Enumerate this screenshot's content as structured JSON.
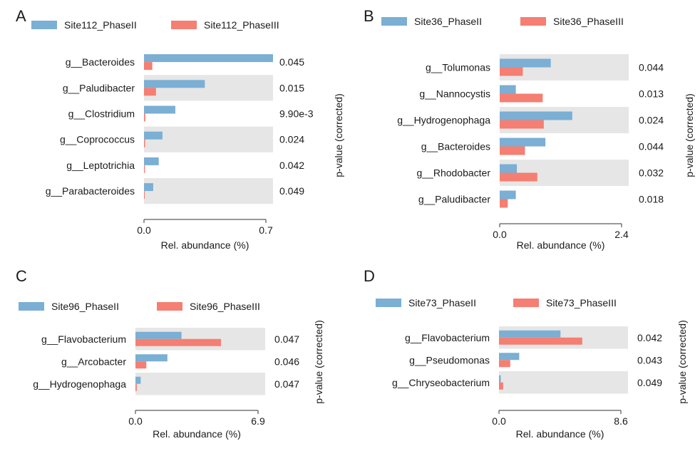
{
  "colors": {
    "phase2": "#7bafd4",
    "phase3": "#f47f72",
    "band": "#e6e6e6",
    "axis": "#333333"
  },
  "chart_data": [
    {
      "type": "bar",
      "panel_label": "A",
      "legend": [
        "Site112_PhaseII",
        "Site112_PhaseIII"
      ],
      "categories": [
        "g__Bacteroides",
        "g__Paludibacter",
        "g__Clostridium",
        "g__Coprococcus",
        "g__Leptotrichia",
        "g__Parabacteroides"
      ],
      "series": [
        {
          "name": "Site112_PhaseII",
          "values": [
            0.7,
            0.33,
            0.17,
            0.1,
            0.08,
            0.05
          ]
        },
        {
          "name": "Site112_PhaseIII",
          "values": [
            0.045,
            0.065,
            0.007,
            0.006,
            0.005,
            0.004
          ]
        }
      ],
      "pvalues": [
        "0.045",
        "0.015",
        "9.90e-3",
        "0.024",
        "0.042",
        "0.049"
      ],
      "xlabel": "Rel. abundance (%)",
      "ylabel_right": "p-value (corrected)",
      "xticks": [
        "0.0",
        "0.7"
      ],
      "xlim": [
        0,
        0.7
      ],
      "legend_position": "top"
    },
    {
      "type": "bar",
      "panel_label": "B",
      "legend": [
        "Site36_PhaseII",
        "Site36_PhaseIII"
      ],
      "categories": [
        "g__Tolumonas",
        "g__Nannocystis",
        "g__Hydrogenophaga",
        "g__Bacteroides",
        "g__Rhodobacter",
        "g__Paludibacter"
      ],
      "series": [
        {
          "name": "Site36_PhaseII",
          "values": [
            0.95,
            0.3,
            1.35,
            0.85,
            0.32,
            0.3
          ]
        },
        {
          "name": "Site36_PhaseIII",
          "values": [
            0.43,
            0.8,
            0.82,
            0.47,
            0.7,
            0.15
          ]
        }
      ],
      "pvalues": [
        "0.044",
        "0.013",
        "0.024",
        "0.044",
        "0.032",
        "0.018"
      ],
      "xlabel": "Rel. abundance (%)",
      "ylabel_right": "p-value (corrected)",
      "xticks": [
        "0.0",
        "2.4"
      ],
      "xlim": [
        0,
        2.4
      ],
      "legend_position": "top"
    },
    {
      "type": "bar",
      "panel_label": "C",
      "legend": [
        "Site96_PhaseII",
        "Site96_PhaseIII"
      ],
      "categories": [
        "g__Flavobacterium",
        "g__Arcobacter",
        "g__Hydrogenophaga"
      ],
      "series": [
        {
          "name": "Site96_PhaseII",
          "values": [
            2.45,
            1.7,
            0.28
          ]
        },
        {
          "name": "Site96_PhaseIII",
          "values": [
            4.55,
            0.58,
            0.07
          ]
        }
      ],
      "pvalues": [
        "0.047",
        "0.046",
        "0.047"
      ],
      "xlabel": "Rel. abundance (%)",
      "ylabel_right": "p-value (corrected)",
      "xticks": [
        "0.0",
        "6.9"
      ],
      "xlim": [
        0,
        6.9
      ],
      "legend_position": "top"
    },
    {
      "type": "bar",
      "panel_label": "D",
      "legend": [
        "Site73_PhaseII",
        "Site73_PhaseIII"
      ],
      "categories": [
        "g__Flavobacterium",
        "g__Pseudomonas",
        "g__Chryseobacterium"
      ],
      "series": [
        {
          "name": "Site73_PhaseII",
          "values": [
            4.1,
            1.35,
            0.12
          ]
        },
        {
          "name": "Site73_PhaseIII",
          "values": [
            5.55,
            0.75,
            0.28
          ]
        }
      ],
      "pvalues": [
        "0.042",
        "0.043",
        "0.049"
      ],
      "xlabel": "Rel. abundance (%)",
      "ylabel_right": "p-value (corrected)",
      "xticks": [
        "0.0",
        "8.6"
      ],
      "xlim": [
        0,
        8.6
      ],
      "legend_position": "top"
    }
  ]
}
